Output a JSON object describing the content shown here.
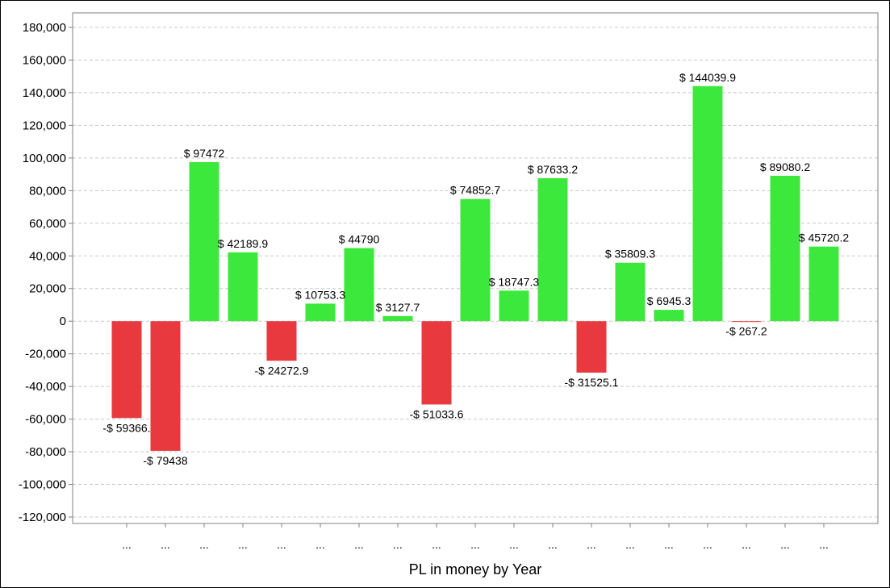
{
  "chart_data": {
    "type": "bar",
    "title": "",
    "xlabel": "PL in money by Year",
    "ylabel": "",
    "ylim": [
      -120000,
      180000
    ],
    "y_ticks": [
      -120000,
      -100000,
      -80000,
      -60000,
      -40000,
      -20000,
      0,
      20000,
      40000,
      60000,
      80000,
      100000,
      120000,
      140000,
      160000,
      180000
    ],
    "y_tick_labels": [
      "-120,000",
      "-100,000",
      "-80,000",
      "-60,000",
      "-40,000",
      "-20,000",
      "0",
      "20,000",
      "40,000",
      "60,000",
      "80,000",
      "100,000",
      "120,000",
      "140,000",
      "160,000",
      "180,000"
    ],
    "categories": [
      "...",
      "...",
      "...",
      "...",
      "...",
      "...",
      "...",
      "...",
      "...",
      "...",
      "...",
      "...",
      "...",
      "...",
      "...",
      "...",
      "...",
      "...",
      "..."
    ],
    "values": [
      -59366,
      -79438,
      97472,
      42189.9,
      -24272.9,
      10753.3,
      44790,
      3127.7,
      -51033.6,
      74852.7,
      18747.3,
      87633.2,
      -31525.1,
      35809.3,
      6945.3,
      144039.9,
      -267.2,
      89080.2,
      45720.2
    ],
    "data_labels": [
      "-$ 59366.",
      "-$ 79438",
      "$ 97472",
      "$ 42189.9",
      "-$ 24272.9",
      "$ 10753.3",
      "$ 44790",
      "$ 3127.7",
      "-$ 51033.6",
      "$ 74852.7",
      "$ 18747.3",
      "$ 87633.2",
      "-$ 31525.1",
      "$ 35809.3",
      "$ 6945.3",
      "$ 144039.9",
      "-$ 267.2",
      "$ 89080.2",
      "$ 45720.2"
    ],
    "colors": {
      "positive": "#3ce83c",
      "negative": "#e83a3e",
      "grid": "#c8c8c8",
      "axis": "#808080"
    },
    "grid": true,
    "legend": "none"
  }
}
